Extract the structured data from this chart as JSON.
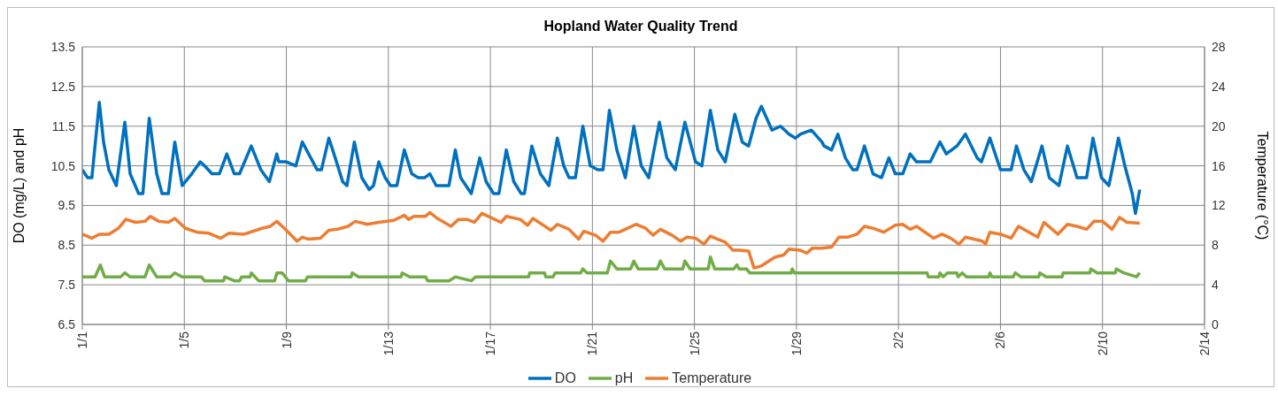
{
  "chart_data": {
    "type": "line",
    "title": "Hopland Water Quality Trend",
    "ylabel": "DO (mg/L) and pH",
    "y2label": "Temperature (°C)",
    "xlim": [
      "--01-01",
      "--02-14"
    ],
    "xticks": [
      {
        "value": "--01-01",
        "label": "1/1"
      },
      {
        "value": "--01-05",
        "label": "1/5"
      },
      {
        "value": "--01-09",
        "label": "1/9"
      },
      {
        "value": "--01-13",
        "label": "1/13"
      },
      {
        "value": "--01-17",
        "label": "1/17"
      },
      {
        "value": "--01-21",
        "label": "1/21"
      },
      {
        "value": "--01-25",
        "label": "1/25"
      },
      {
        "value": "--01-29",
        "label": "1/29"
      },
      {
        "value": "--02-02",
        "label": "2/2"
      },
      {
        "value": "--02-06",
        "label": "2/6"
      },
      {
        "value": "--02-10",
        "label": "2/10"
      },
      {
        "value": "--02-14",
        "label": "2/14"
      }
    ],
    "ylim": [
      6.5,
      13.5
    ],
    "yticks": [
      6.5,
      7.5,
      8.5,
      9.5,
      10.5,
      11.5,
      12.5,
      13.5
    ],
    "y2lim": [
      0,
      28
    ],
    "y2ticks": [
      0,
      4,
      8,
      12,
      16,
      20,
      24,
      28
    ],
    "grid": true,
    "legend": "bottom",
    "marker": "none",
    "line_style": "solid",
    "series": [
      {
        "name": "DO",
        "color": "#0070c0",
        "x": [
          "--01-01T00:00",
          "--01-01T05:00",
          "--01-01T09:00",
          "--01-01T16:00",
          "--01-01T20:00",
          "--01-02T01:00",
          "--01-02T08:00",
          "--01-02T16:00",
          "--01-02T21:00",
          "--01-03T05:00",
          "--01-03T09:00",
          "--01-03T15:00",
          "--01-03T22:00",
          "--01-04T03:00",
          "--01-04T09:00",
          "--01-04T15:00",
          "--01-04T22:00",
          "--01-05T07:00",
          "--01-05T15:00",
          "--01-05T19:00",
          "--01-06T02:00",
          "--01-06T09:00",
          "--01-06T16:00",
          "--01-06T23:00",
          "--01-07T04:00",
          "--01-07T15:00",
          "--01-08T00:00",
          "--01-08T08:00",
          "--01-08T15:00",
          "--01-08T17:00",
          "--01-09T00:00",
          "--01-09T09:00",
          "--01-09T15:00",
          "--01-09T21:00",
          "--01-10T05:00",
          "--01-10T09:00",
          "--01-10T16:00",
          "--01-10T22:00",
          "--01-11T05:00",
          "--01-11T09:00",
          "--01-11T16:00",
          "--01-11T23:00",
          "--01-12T06:00",
          "--01-12T10:00",
          "--01-12T15:00",
          "--01-12T21:00",
          "--01-13T02:00",
          "--01-13T08:00",
          "--01-13T15:00",
          "--01-13T22:00",
          "--01-14T04:00",
          "--01-14T10:00",
          "--01-14T15:00",
          "--01-14T21:00",
          "--01-15T09:00",
          "--01-15T15:00",
          "--01-15T20:00",
          "--01-16T06:00",
          "--01-16T14:00",
          "--01-16T20:00",
          "--01-17T03:00",
          "--01-17T08:00",
          "--01-17T15:00",
          "--01-17T22:00",
          "--01-18T05:00",
          "--01-18T08:00",
          "--01-18T15:00",
          "--01-18T23:00",
          "--01-19T07:00",
          "--01-19T15:00",
          "--01-19T21:00",
          "--01-20T02:00",
          "--01-20T08:00",
          "--01-20T15:00",
          "--01-20T22:00",
          "--01-21T05:00",
          "--01-21T10:00",
          "--01-21T16:00",
          "--01-21T23:00",
          "--01-22T07:00",
          "--01-22T15:00",
          "--01-22T22:00",
          "--01-23T05:00",
          "--01-23T15:00",
          "--01-23T22:00",
          "--01-24T06:00",
          "--01-24T15:00",
          "--01-25T01:00",
          "--01-25T07:00",
          "--01-25T15:00",
          "--01-25T22:00",
          "--01-26T05:00",
          "--01-26T14:00",
          "--01-26T21:00",
          "--01-27T03:00",
          "--01-27T10:00",
          "--01-27T15:00",
          "--01-28T01:00",
          "--01-28T09:00",
          "--01-28T17:00",
          "--01-28T23:00",
          "--01-29T04:00",
          "--01-29T14:00",
          "--01-30T00:00",
          "--01-30T02:00",
          "--01-30T09:00",
          "--01-30T15:00",
          "--01-30T22:00",
          "--01-31T05:00",
          "--01-31T09:00",
          "--01-31T16:00",
          "--02-01T00:00",
          "--02-01T08:00",
          "--02-01T15:00",
          "--02-01T21:00",
          "--02-02T04:00",
          "--02-02T11:00",
          "--02-02T17:00",
          "--02-03T06:00",
          "--02-03T15:00",
          "--02-03T21:00",
          "--02-04T07:00",
          "--02-04T15:00",
          "--02-05T02:00",
          "--02-05T06:00",
          "--02-05T14:00",
          "--02-06T00:00",
          "--02-06T10:00",
          "--02-06T15:00",
          "--02-06T22:00",
          "--02-07T05:00",
          "--02-07T15:00",
          "--02-07T22:00",
          "--02-08T07:00",
          "--02-08T15:00",
          "--02-09T00:00",
          "--02-09T09:00",
          "--02-09T15:00",
          "--02-09T23:00",
          "--02-10T06:00",
          "--02-10T15:00",
          "--02-10T21:00",
          "--02-11T04:00",
          "--02-11T07:00",
          "--02-11T11:00"
        ],
        "values": [
          10.4,
          10.2,
          10.2,
          12.1,
          11.1,
          10.4,
          10.0,
          11.6,
          10.3,
          9.8,
          9.8,
          11.7,
          10.3,
          9.8,
          9.8,
          11.1,
          10.0,
          10.3,
          10.6,
          10.5,
          10.3,
          10.3,
          10.8,
          10.3,
          10.3,
          11.0,
          10.4,
          10.1,
          10.8,
          10.6,
          10.6,
          10.5,
          11.1,
          10.8,
          10.4,
          10.4,
          11.2,
          10.7,
          10.1,
          10.0,
          11.1,
          10.2,
          9.9,
          10.0,
          10.6,
          10.2,
          10.0,
          10.0,
          10.9,
          10.3,
          10.2,
          10.2,
          10.3,
          10.0,
          10.0,
          10.9,
          10.2,
          9.8,
          10.7,
          10.1,
          9.8,
          9.8,
          10.9,
          10.1,
          9.8,
          9.8,
          11.0,
          10.3,
          10.0,
          11.2,
          10.5,
          10.2,
          10.2,
          11.5,
          10.5,
          10.4,
          10.4,
          11.9,
          10.9,
          10.2,
          11.5,
          10.5,
          10.2,
          11.6,
          10.7,
          10.4,
          11.6,
          10.6,
          10.5,
          11.9,
          10.9,
          10.6,
          11.8,
          11.1,
          11.0,
          11.7,
          12.0,
          11.4,
          11.5,
          11.3,
          11.2,
          11.3,
          11.4,
          11.1,
          11.0,
          10.9,
          11.3,
          10.7,
          10.4,
          10.4,
          11.0,
          10.3,
          10.2,
          10.7,
          10.3,
          10.3,
          10.8,
          10.6,
          10.6,
          11.1,
          10.8,
          11.0,
          11.3,
          10.7,
          10.6,
          11.2,
          10.4,
          10.4,
          11.0,
          10.4,
          10.1,
          11.0,
          10.2,
          10.0,
          11.0,
          10.2,
          10.2,
          11.2,
          10.2,
          10.0,
          11.2,
          10.5,
          9.8,
          9.3,
          9.9
        ]
      },
      {
        "name": "pH",
        "color": "#70ad47",
        "x": [
          "--01-01T00:00",
          "--01-01T12:00",
          "--01-01T17:00",
          "--01-01T21:00",
          "--01-02T12:00",
          "--01-02T16:00",
          "--01-02T21:00",
          "--01-03T11:00",
          "--01-03T15:00",
          "--01-03T22:00",
          "--01-04T11:00",
          "--01-04T15:00",
          "--01-04T22:00",
          "--01-05T16:00",
          "--01-05T19:00",
          "--01-06T13:00",
          "--01-06T14:00",
          "--01-06T23:00",
          "--01-07T04:00",
          "--01-07T06:00",
          "--01-07T14:00",
          "--01-07T15:00",
          "--01-07T22:00",
          "--01-08T13:00",
          "--01-08T15:00",
          "--01-08T20:00",
          "--01-09T02:00",
          "--01-09T18:00",
          "--01-09T20:00",
          "--01-11T13:00",
          "--01-11T14:00",
          "--01-11T20:00",
          "--01-13T12:00",
          "--01-13T13:00",
          "--01-13T20:00",
          "--01-14T11:00",
          "--01-14T13:00",
          "--01-15T09:00",
          "--01-15T15:00",
          "--01-16T06:00",
          "--01-16T10:00",
          "--01-18T12:00",
          "--01-18T13:00",
          "--01-19T03:00",
          "--01-19T04:00",
          "--01-19T11:00",
          "--01-19T13:00",
          "--01-20T13:00",
          "--01-20T15:00",
          "--01-20T19:00",
          "--01-21T14:00",
          "--01-21T17:00",
          "--01-21T23:00",
          "--01-22T12:00",
          "--01-22T15:00",
          "--01-22T19:00",
          "--01-23T13:00",
          "--01-23T16:00",
          "--01-23T20:00",
          "--01-24T13:00",
          "--01-24T15:00",
          "--01-24T20:00",
          "--01-25T13:00",
          "--01-25T15:00",
          "--01-25T19:00",
          "--01-26T13:00",
          "--01-26T16:00",
          "--01-26T18:00",
          "--01-27T01:00",
          "--01-27T04:00",
          "--01-28T19:00",
          "--01-28T20:00",
          "--01-28T22:00",
          "--02-03T03:00",
          "--02-03T04:00",
          "--02-03T14:00",
          "--02-03T15:00",
          "--02-03T18:00",
          "--02-03T22:00",
          "--02-04T07:00",
          "--02-04T08:00",
          "--02-04T12:00",
          "--02-04T16:00",
          "--02-05T13:00",
          "--02-05T14:00",
          "--02-05T16:00",
          "--02-06T12:00",
          "--02-06T14:00",
          "--02-06T19:00",
          "--02-07T12:00",
          "--02-07T13:00",
          "--02-07T19:00",
          "--02-08T10:00",
          "--02-08T11:00",
          "--02-09T12:00",
          "--02-09T13:00",
          "--02-09T19:00",
          "--02-10T12:00",
          "--02-10T13:00",
          "--02-10T20:00",
          "--02-11T08:00",
          "--02-11T11:00"
        ],
        "values": [
          7.7,
          7.7,
          8.0,
          7.7,
          7.7,
          7.8,
          7.7,
          7.7,
          8.0,
          7.7,
          7.7,
          7.8,
          7.7,
          7.7,
          7.6,
          7.6,
          7.7,
          7.6,
          7.6,
          7.7,
          7.7,
          7.8,
          7.6,
          7.6,
          7.8,
          7.8,
          7.6,
          7.6,
          7.7,
          7.7,
          7.8,
          7.7,
          7.7,
          7.8,
          7.7,
          7.7,
          7.6,
          7.6,
          7.7,
          7.6,
          7.7,
          7.7,
          7.8,
          7.8,
          7.7,
          7.7,
          7.8,
          7.8,
          7.9,
          7.8,
          7.8,
          8.1,
          7.9,
          7.9,
          8.1,
          7.9,
          7.9,
          8.1,
          7.9,
          7.9,
          8.1,
          7.9,
          7.9,
          8.2,
          7.9,
          7.9,
          8.0,
          7.9,
          7.9,
          7.8,
          7.8,
          7.9,
          7.8,
          7.8,
          7.7,
          7.7,
          7.8,
          7.7,
          7.8,
          7.8,
          7.7,
          7.8,
          7.7,
          7.7,
          7.8,
          7.7,
          7.7,
          7.8,
          7.7,
          7.7,
          7.8,
          7.7,
          7.7,
          7.8,
          7.8,
          7.9,
          7.8,
          7.8,
          7.9,
          7.8,
          7.7,
          7.8
        ]
      },
      {
        "name": "Temperature",
        "color": "#ed7d31",
        "axis": "y2",
        "x": [
          "--01-01T00:00",
          "--01-01T09:00",
          "--01-01T16:00",
          "--01-02T01:00",
          "--01-02T10:00",
          "--01-02T17:00",
          "--01-03T02:00",
          "--01-03T11:00",
          "--01-03T16:00",
          "--01-04T00:00",
          "--01-04T09:00",
          "--01-04T15:00",
          "--01-05T01:00",
          "--01-05T12:00",
          "--01-05T23:00",
          "--01-06T10:00",
          "--01-06T18:00",
          "--01-07T08:00",
          "--01-07T14:00",
          "--01-08T01:00",
          "--01-08T09:00",
          "--01-08T15:00",
          "--01-08T23:00",
          "--01-09T10:00",
          "--01-09T15:00",
          "--01-09T21:00",
          "--01-10T08:00",
          "--01-10T16:00",
          "--01-11T00:00",
          "--01-11T10:00",
          "--01-11T17:00",
          "--01-12T04:00",
          "--01-12T15:00",
          "--01-13T05:00",
          "--01-13T15:00",
          "--01-13T19:00",
          "--01-14T00:00",
          "--01-14T11:00",
          "--01-14T15:00",
          "--01-14T22:00",
          "--01-15T11:00",
          "--01-15T18:00",
          "--01-16T02:00",
          "--01-16T09:00",
          "--01-16T16:00",
          "--01-17T00:00",
          "--01-17T10:00",
          "--01-17T15:00",
          "--01-18T04:00",
          "--01-18T11:00",
          "--01-18T16:00",
          "--01-19T02:00",
          "--01-19T09:00",
          "--01-19T15:00",
          "--01-20T02:00",
          "--01-20T11:00",
          "--01-20T16:00",
          "--01-21T03:00",
          "--01-21T10:00",
          "--01-21T17:00",
          "--01-22T01:00",
          "--01-22T07:00",
          "--01-22T17:00",
          "--01-23T02:00",
          "--01-23T09:00",
          "--01-23T16:00",
          "--01-24T03:00",
          "--01-24T11:00",
          "--01-24T17:00",
          "--01-25T01:00",
          "--01-25T09:00",
          "--01-25T15:00",
          "--01-25T22:00",
          "--01-26T05:00",
          "--01-26T12:00",
          "--01-26T18:00",
          "--01-27T03:00",
          "--01-27T08:00",
          "--01-27T15:00",
          "--01-28T04:00",
          "--01-28T12:00",
          "--01-28T17:00",
          "--01-29T03:00",
          "--01-29T10:00",
          "--01-29T15:00",
          "--01-30T00:00",
          "--01-30T09:00",
          "--01-30T16:00",
          "--01-31T00:00",
          "--01-31T09:00",
          "--01-31T16:00",
          "--02-01T00:00",
          "--02-01T10:00",
          "--02-01T21:00",
          "--02-02T04:00",
          "--02-02T11:00",
          "--02-02T17:00",
          "--02-03T09:00",
          "--02-03T17:00",
          "--02-04T01:00",
          "--02-04T09:00",
          "--02-04T15:00",
          "--02-04T23:00",
          "--02-05T07:00",
          "--02-05T10:00",
          "--02-05T14:00",
          "--02-06T00:00",
          "--02-06T10:00",
          "--02-06T17:00",
          "--02-07T01:00",
          "--02-07T11:00",
          "--02-07T17:00",
          "--02-08T06:00",
          "--02-08T15:00",
          "--02-09T00:00",
          "--02-09T09:00",
          "--02-09T16:00",
          "--02-10T00:00",
          "--02-10T09:00",
          "--02-10T16:00",
          "--02-10T23:00",
          "--02-11T11:00"
        ],
        "values": [
          9.1,
          8.7,
          9.1,
          9.1,
          9.7,
          10.6,
          10.3,
          10.4,
          10.9,
          10.4,
          10.3,
          10.7,
          9.7,
          9.3,
          9.2,
          8.7,
          9.2,
          9.1,
          9.3,
          9.7,
          9.9,
          10.4,
          9.6,
          8.4,
          8.8,
          8.6,
          8.7,
          9.5,
          9.6,
          9.9,
          10.4,
          10.1,
          10.3,
          10.5,
          11.0,
          10.6,
          10.9,
          10.9,
          11.3,
          10.7,
          9.9,
          10.6,
          10.6,
          10.3,
          11.2,
          10.8,
          10.3,
          10.9,
          10.6,
          10.0,
          10.7,
          10.0,
          9.5,
          10.1,
          9.6,
          8.6,
          9.4,
          9.0,
          8.4,
          9.3,
          9.3,
          9.6,
          10.1,
          9.7,
          9.0,
          9.6,
          9.0,
          8.4,
          8.8,
          8.7,
          8.1,
          8.9,
          8.6,
          8.3,
          7.5,
          7.5,
          7.4,
          5.7,
          5.9,
          6.8,
          7.0,
          7.6,
          7.5,
          7.2,
          7.7,
          7.7,
          7.8,
          8.8,
          8.8,
          9.1,
          9.9,
          9.7,
          9.3,
          10.0,
          10.1,
          9.6,
          9.9,
          8.7,
          9.1,
          8.7,
          8.1,
          8.8,
          8.6,
          8.4,
          8.1,
          9.3,
          9.1,
          8.7,
          9.9,
          9.4,
          8.8,
          10.3,
          9.1,
          10.1,
          9.9,
          9.6,
          10.4,
          10.4,
          9.6,
          10.8,
          10.3,
          10.2
        ]
      }
    ]
  }
}
